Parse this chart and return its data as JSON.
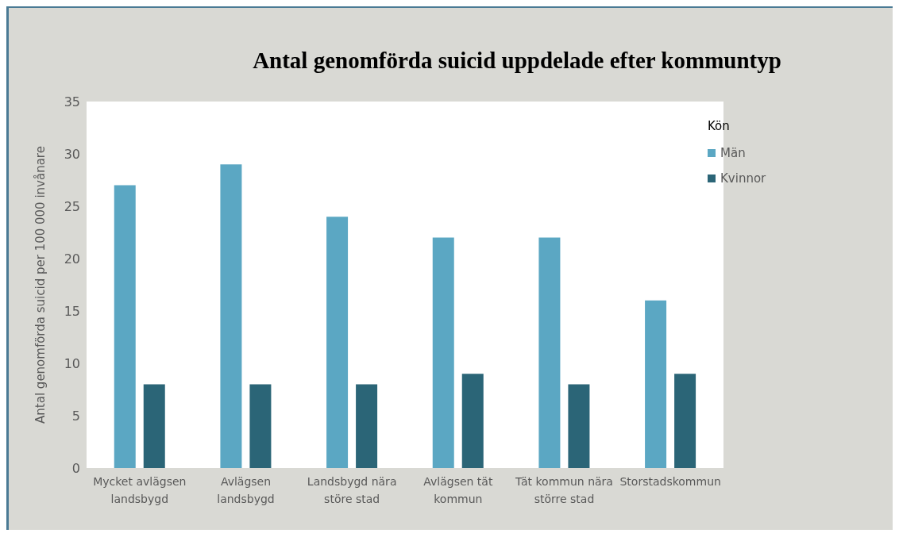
{
  "chart_data": {
    "type": "bar",
    "title": "Antal genomförda suicid uppdelade efter kommuntyp",
    "ylabel": "Antal genomförda suicid per 100 000 invånare",
    "legend_title": "Kön",
    "categories": [
      "Mycket avlägsen landsbygd",
      "Avlägsen landsbygd",
      "Landsbygd nära störe stad",
      "Avlägsen tät kommun",
      "Tät kommun nära större stad",
      "Storstadskommun"
    ],
    "series": [
      {
        "name": "Män",
        "color": "#5ba7c3",
        "values": [
          27,
          29,
          24,
          22,
          22,
          16
        ]
      },
      {
        "name": "Kvinnor",
        "color": "#2b6577",
        "values": [
          8,
          8,
          8,
          9,
          8,
          9
        ]
      }
    ],
    "ylim": [
      0,
      35
    ],
    "yticks": [
      0,
      5,
      10,
      15,
      20,
      25,
      30,
      35
    ],
    "grid": false,
    "legend": "top right"
  }
}
